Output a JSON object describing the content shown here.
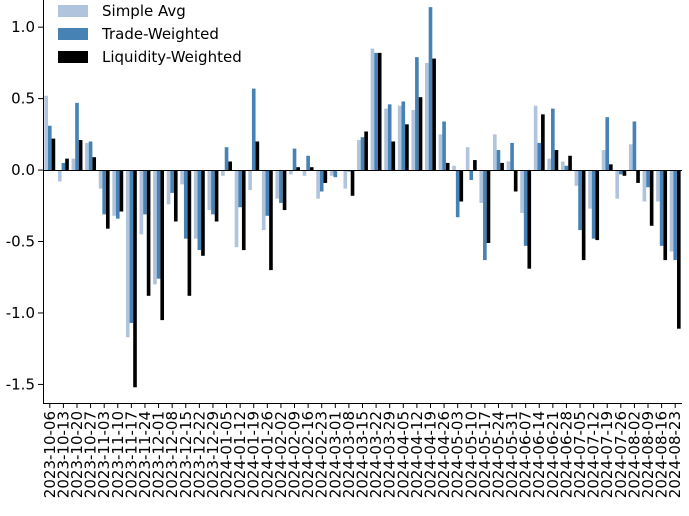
{
  "chart_data": {
    "type": "bar",
    "title": "",
    "xlabel": "",
    "ylabel": "",
    "ylim": [
      -1.63,
      1.19
    ],
    "yticks": [
      -1.5,
      -1.0,
      -0.5,
      0.0,
      0.5,
      1.0
    ],
    "ytick_labels": [
      "-1.5",
      "-1.0",
      "-0.5",
      "0.0",
      "0.5",
      "1.0"
    ],
    "grid": false,
    "legend": "top-left",
    "categories": [
      "2023-10-06",
      "2023-10-13",
      "2023-10-20",
      "2023-10-27",
      "2023-11-03",
      "2023-11-10",
      "2023-11-17",
      "2023-11-24",
      "2023-12-01",
      "2023-12-08",
      "2023-12-15",
      "2023-12-22",
      "2023-12-29",
      "2024-01-05",
      "2024-01-12",
      "2024-01-19",
      "2024-01-26",
      "2024-02-02",
      "2024-02-09",
      "2024-02-16",
      "2024-02-23",
      "2024-03-01",
      "2024-03-08",
      "2024-03-15",
      "2024-03-22",
      "2024-03-29",
      "2024-04-05",
      "2024-04-12",
      "2024-04-19",
      "2024-04-26",
      "2024-05-03",
      "2024-05-10",
      "2024-05-17",
      "2024-05-24",
      "2024-05-31",
      "2024-06-07",
      "2024-06-14",
      "2024-06-21",
      "2024-06-28",
      "2024-07-05",
      "2024-07-12",
      "2024-07-19",
      "2024-07-26",
      "2024-08-02",
      "2024-08-09",
      "2024-08-16",
      "2024-08-23"
    ],
    "xtick_labels": [
      "2023-10-06",
      "2023-10-13",
      "2023-10-20",
      "2023-10-27",
      "2023-11-03",
      "2023-11-10",
      "2023-11-17",
      "2023-11-24",
      "2023-12-01",
      "2023-12-08",
      "2023-12-15",
      "2023-12-22",
      "2023-12-29",
      "2024-01-05",
      "2024-01-12",
      "2024-01-19",
      "2024-01-26",
      "2024-02-02",
      "2024-02-09",
      "2024-02-16",
      "2024-02-23",
      "2024-03-01",
      "2024-03-08",
      "2024-03-15",
      "2024-03-22",
      "2024-03-29",
      "2024-04-05",
      "2024-04-12",
      "2024-04-19",
      "2024-04-26",
      "2024-05-03",
      "2024-05-10",
      "2024-05-17",
      "2024-05-24",
      "2024-05-31",
      "2024-06-07",
      "2024-06-14",
      "2024-06-21",
      "2024-06-28",
      "2024-07-05",
      "2024-07-12",
      "2024-07-19",
      "2024-07-26",
      "2024-08-02",
      "2024-08-09",
      "2024-08-16",
      "2024-08-23"
    ],
    "series": [
      {
        "name": "Simple Avg",
        "color": "#b0c4de",
        "values": [
          0.52,
          -0.08,
          0.08,
          0.19,
          -0.13,
          -0.32,
          -1.17,
          -0.45,
          -0.8,
          -0.24,
          -0.1,
          -0.48,
          -0.28,
          -0.04,
          -0.54,
          -0.14,
          -0.42,
          -0.2,
          -0.03,
          -0.04,
          -0.2,
          -0.04,
          -0.13,
          0.21,
          0.85,
          0.43,
          0.45,
          0.42,
          0.75,
          0.25,
          0.03,
          0.16,
          -0.23,
          0.25,
          0.06,
          -0.3,
          0.45,
          0.08,
          0.06,
          -0.11,
          -0.27,
          0.14,
          -0.2,
          0.18,
          -0.22,
          -0.22,
          -0.57
        ]
      },
      {
        "name": "Trade-Weighted",
        "color": "#4682b4",
        "values": [
          0.31,
          0.05,
          0.47,
          0.2,
          -0.31,
          -0.34,
          -1.07,
          -0.31,
          -0.76,
          -0.16,
          -0.48,
          -0.56,
          -0.31,
          0.16,
          -0.26,
          0.57,
          -0.32,
          -0.23,
          0.15,
          0.1,
          -0.15,
          -0.05,
          -0.01,
          0.23,
          0.82,
          0.46,
          0.48,
          0.79,
          1.14,
          0.34,
          -0.33,
          -0.07,
          -0.63,
          0.14,
          0.19,
          -0.53,
          0.19,
          0.43,
          0.03,
          -0.42,
          -0.48,
          0.37,
          -0.03,
          0.34,
          -0.12,
          -0.53,
          -0.63
        ]
      },
      {
        "name": "Liquidity-Weighted",
        "color": "#000000",
        "values": [
          0.22,
          0.08,
          0.21,
          0.09,
          -0.41,
          -0.29,
          -1.52,
          -0.88,
          -1.05,
          -0.36,
          -0.88,
          -0.6,
          -0.36,
          0.06,
          -0.56,
          0.2,
          -0.7,
          -0.28,
          0.02,
          0.02,
          -0.09,
          0.0,
          -0.18,
          0.27,
          0.82,
          0.2,
          0.32,
          0.51,
          0.78,
          0.05,
          -0.22,
          0.07,
          -0.51,
          0.05,
          -0.15,
          -0.69,
          0.39,
          0.14,
          0.1,
          -0.63,
          -0.49,
          0.04,
          -0.04,
          -0.09,
          -0.39,
          -0.63,
          -1.11
        ]
      }
    ]
  }
}
